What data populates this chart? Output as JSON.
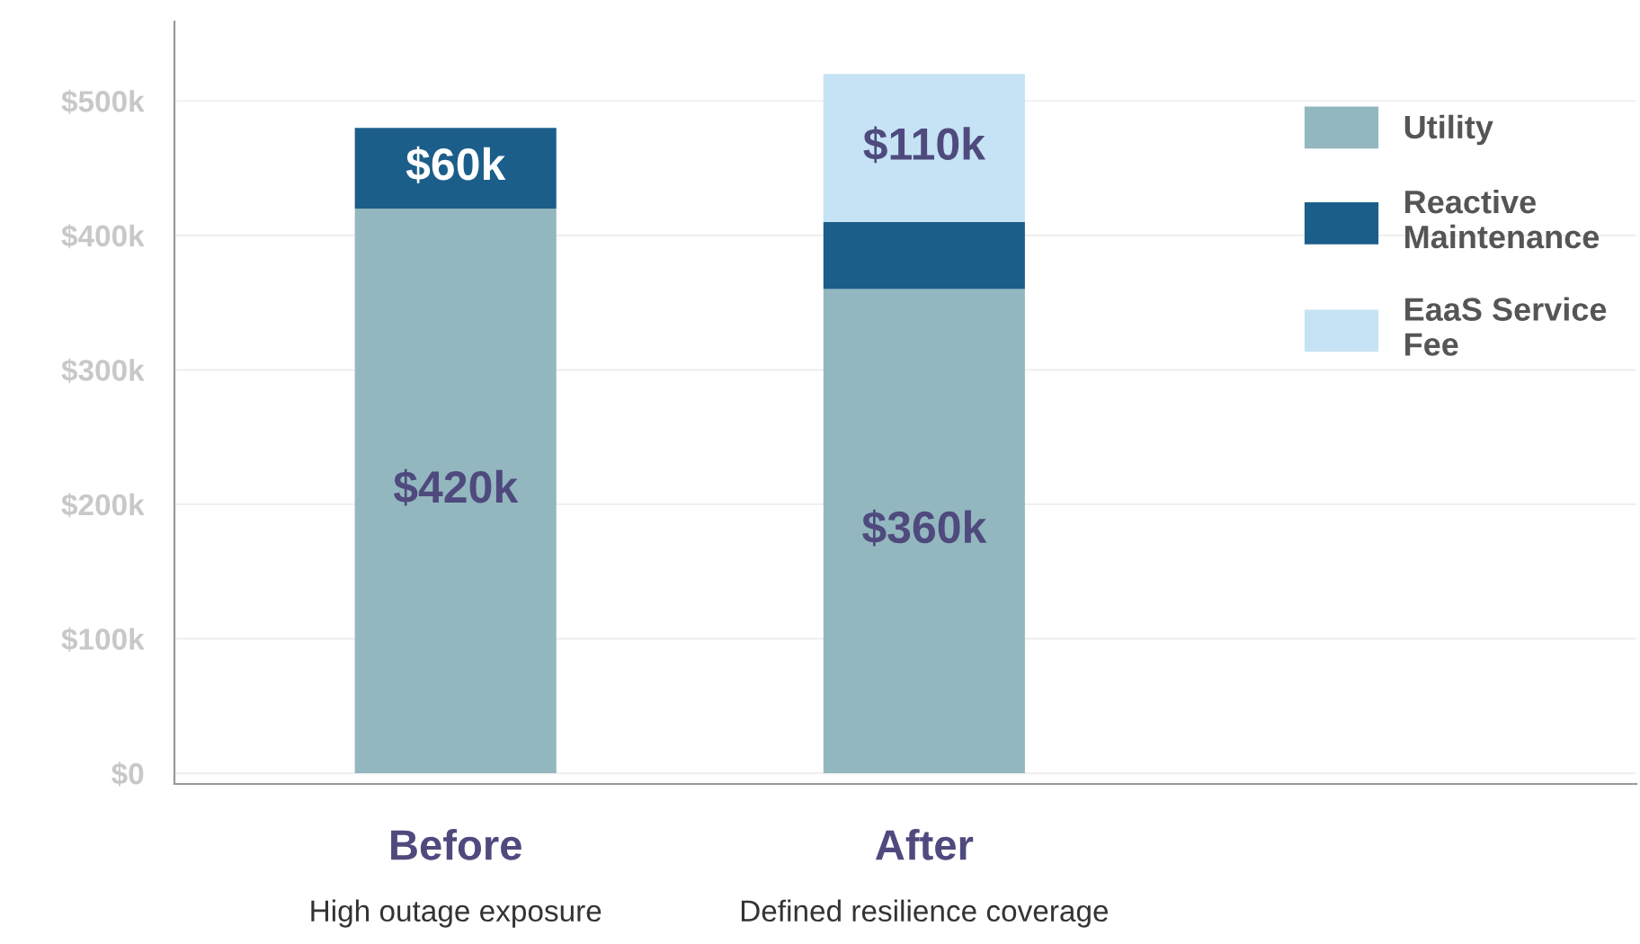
{
  "chart_data": {
    "type": "bar",
    "stacked": true,
    "categories": [
      "Before",
      "After"
    ],
    "series": [
      {
        "name": "Utility",
        "color": "#93b7bf",
        "values": [
          420,
          360
        ],
        "value_labels": [
          "$420k",
          "$360k"
        ]
      },
      {
        "name": "Reactive\nMaintenance",
        "color": "#1b5e8a",
        "values": [
          60,
          50
        ],
        "value_labels": [
          "$60k",
          null
        ]
      },
      {
        "name": "EaaS Service\nFee",
        "color": "#c5e3f4",
        "values": [
          0,
          110
        ],
        "value_labels": [
          null,
          "$110k"
        ]
      }
    ],
    "ylim": [
      -8,
      559
    ],
    "yticks": [
      {
        "value": 0,
        "label": "$0"
      },
      {
        "value": 100,
        "label": "$100k"
      },
      {
        "value": 200,
        "label": "$200k"
      },
      {
        "value": 300,
        "label": "$300k"
      },
      {
        "value": 400,
        "label": "$400k"
      },
      {
        "value": 500,
        "label": "$500k"
      }
    ],
    "grid": "y",
    "legend": "right",
    "annotations": [
      "High outage exposure",
      "Defined resilience coverage"
    ]
  }
}
